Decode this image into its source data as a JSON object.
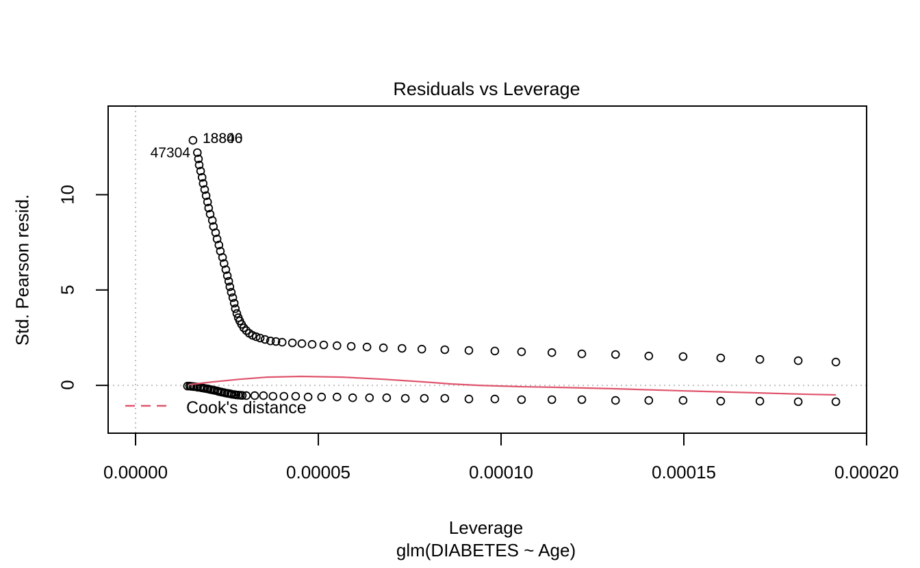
{
  "title": "Residuals vs Leverage",
  "axes": {
    "x_label": "Leverage",
    "x_sub_label": "glm(DIABETES ~ Age)",
    "y_label": "Std. Pearson resid."
  },
  "legend": {
    "label": "Cook's distance"
  },
  "colors": {
    "point": "#000000",
    "smooth_line": "#DF536B",
    "legend_dash": "#DF536B",
    "guide": "#BEBEBE",
    "frame": "#000000"
  },
  "chart_data": {
    "type": "scatter",
    "title": "Residuals vs Leverage",
    "xlabel": "Leverage",
    "xlabel_sub": "glm(DIABETES ~ Age)",
    "ylabel": "Std. Pearson resid.",
    "x_scale_note": "x values below are leverage in units of 1e-5",
    "x_scale": 1e-05,
    "xlim": [
      -0.75,
      20.0
    ],
    "ylim": [
      -2.51,
      14.65
    ],
    "grid": false,
    "legend_position": "bottom-left-inside",
    "x_ticks": [
      {
        "v": 0.0,
        "label": "0.00000"
      },
      {
        "v": 5.0,
        "label": "0.00005"
      },
      {
        "v": 10.0,
        "label": "0.00010"
      },
      {
        "v": 15.0,
        "label": "0.00015"
      },
      {
        "v": 20.0,
        "label": "0.00020"
      }
    ],
    "y_ticks": [
      {
        "v": 0,
        "label": "0"
      },
      {
        "v": 5,
        "label": "5"
      },
      {
        "v": 10,
        "label": "10"
      }
    ],
    "guides": {
      "vline_x": 0.0,
      "hline_y": 0.0
    },
    "series": [
      {
        "name": "positive-residual-branch",
        "marker": "open-circle",
        "points": [
          [
            1.57,
            12.85
          ],
          [
            1.69,
            12.21
          ],
          [
            1.72,
            11.88
          ],
          [
            1.74,
            11.56
          ],
          [
            1.78,
            11.24
          ],
          [
            1.82,
            10.91
          ],
          [
            1.85,
            10.59
          ],
          [
            1.89,
            10.27
          ],
          [
            1.93,
            9.95
          ],
          [
            1.97,
            9.62
          ],
          [
            2.0,
            9.3
          ],
          [
            2.04,
            8.98
          ],
          [
            2.1,
            8.65
          ],
          [
            2.13,
            8.33
          ],
          [
            2.19,
            8.01
          ],
          [
            2.23,
            7.68
          ],
          [
            2.28,
            7.36
          ],
          [
            2.32,
            7.04
          ],
          [
            2.38,
            6.71
          ],
          [
            2.42,
            6.39
          ],
          [
            2.47,
            6.07
          ],
          [
            2.51,
            5.75
          ],
          [
            2.55,
            5.46
          ],
          [
            2.58,
            5.17
          ],
          [
            2.62,
            4.88
          ],
          [
            2.66,
            4.6
          ],
          [
            2.7,
            4.31
          ],
          [
            2.73,
            4.02
          ],
          [
            2.77,
            3.77
          ],
          [
            2.81,
            3.55
          ],
          [
            2.85,
            3.38
          ],
          [
            2.9,
            3.2
          ],
          [
            2.96,
            3.02
          ],
          [
            3.03,
            2.87
          ],
          [
            3.11,
            2.73
          ],
          [
            3.2,
            2.62
          ],
          [
            3.3,
            2.55
          ],
          [
            3.41,
            2.48
          ],
          [
            3.54,
            2.41
          ],
          [
            3.69,
            2.33
          ],
          [
            3.84,
            2.3
          ],
          [
            4.01,
            2.26
          ],
          [
            4.29,
            2.23
          ],
          [
            4.55,
            2.19
          ],
          [
            4.83,
            2.15
          ],
          [
            5.15,
            2.12
          ],
          [
            5.51,
            2.08
          ],
          [
            5.9,
            2.05
          ],
          [
            6.33,
            2.01
          ],
          [
            6.78,
            1.97
          ],
          [
            7.29,
            1.94
          ],
          [
            7.83,
            1.9
          ],
          [
            8.46,
            1.87
          ],
          [
            9.12,
            1.83
          ],
          [
            9.83,
            1.8
          ],
          [
            10.56,
            1.76
          ],
          [
            11.39,
            1.72
          ],
          [
            12.21,
            1.65
          ],
          [
            13.13,
            1.62
          ],
          [
            14.04,
            1.54
          ],
          [
            14.98,
            1.51
          ],
          [
            16.01,
            1.44
          ],
          [
            17.08,
            1.36
          ],
          [
            18.13,
            1.29
          ],
          [
            19.16,
            1.22
          ]
        ]
      },
      {
        "name": "negative-residual-branch",
        "marker": "open-circle",
        "points": [
          [
            1.42,
            -0.04
          ],
          [
            1.48,
            -0.04
          ],
          [
            1.52,
            -0.05
          ],
          [
            1.57,
            -0.06
          ],
          [
            1.61,
            -0.07
          ],
          [
            1.67,
            -0.08
          ],
          [
            1.7,
            -0.1
          ],
          [
            1.76,
            -0.11
          ],
          [
            1.8,
            -0.13
          ],
          [
            1.85,
            -0.14
          ],
          [
            1.89,
            -0.16
          ],
          [
            1.95,
            -0.18
          ],
          [
            1.99,
            -0.19
          ],
          [
            2.04,
            -0.22
          ],
          [
            2.08,
            -0.23
          ],
          [
            2.13,
            -0.25
          ],
          [
            2.17,
            -0.27
          ],
          [
            2.23,
            -0.29
          ],
          [
            2.27,
            -0.32
          ],
          [
            2.32,
            -0.34
          ],
          [
            2.36,
            -0.36
          ],
          [
            2.42,
            -0.38
          ],
          [
            2.45,
            -0.4
          ],
          [
            2.51,
            -0.42
          ],
          [
            2.55,
            -0.43
          ],
          [
            2.6,
            -0.45
          ],
          [
            2.64,
            -0.47
          ],
          [
            2.7,
            -0.48
          ],
          [
            2.75,
            -0.5
          ],
          [
            2.81,
            -0.51
          ],
          [
            2.87,
            -0.52
          ],
          [
            2.92,
            -0.53
          ],
          [
            3.03,
            -0.54
          ],
          [
            3.26,
            -0.54
          ],
          [
            3.5,
            -0.54
          ],
          [
            3.76,
            -0.57
          ],
          [
            4.06,
            -0.57
          ],
          [
            4.38,
            -0.57
          ],
          [
            4.72,
            -0.61
          ],
          [
            5.09,
            -0.61
          ],
          [
            5.51,
            -0.61
          ],
          [
            5.94,
            -0.65
          ],
          [
            6.4,
            -0.65
          ],
          [
            6.87,
            -0.65
          ],
          [
            7.38,
            -0.68
          ],
          [
            7.9,
            -0.68
          ],
          [
            8.46,
            -0.68
          ],
          [
            9.12,
            -0.72
          ],
          [
            9.83,
            -0.72
          ],
          [
            10.56,
            -0.75
          ],
          [
            11.39,
            -0.75
          ],
          [
            12.21,
            -0.75
          ],
          [
            13.13,
            -0.79
          ],
          [
            14.04,
            -0.79
          ],
          [
            14.98,
            -0.79
          ],
          [
            16.01,
            -0.83
          ],
          [
            17.08,
            -0.83
          ],
          [
            18.13,
            -0.86
          ],
          [
            19.16,
            -0.86
          ]
        ]
      },
      {
        "name": "smooth-curve",
        "marker": "line",
        "points": [
          [
            1.46,
            0.04
          ],
          [
            2.1,
            0.18
          ],
          [
            2.85,
            0.32
          ],
          [
            3.6,
            0.43
          ],
          [
            4.53,
            0.47
          ],
          [
            5.66,
            0.43
          ],
          [
            6.78,
            0.32
          ],
          [
            7.9,
            0.18
          ],
          [
            8.65,
            0.07
          ],
          [
            9.4,
            0.0
          ],
          [
            10.52,
            -0.07
          ],
          [
            11.65,
            -0.11
          ],
          [
            13.15,
            -0.18
          ],
          [
            15.02,
            -0.29
          ],
          [
            16.89,
            -0.39
          ],
          [
            18.39,
            -0.47
          ],
          [
            19.16,
            -0.5
          ]
        ]
      }
    ],
    "point_labels": [
      {
        "text": "18846",
        "x": 1.57,
        "v": 12.85,
        "side": "right"
      },
      {
        "text": "18800",
        "x": 1.57,
        "v": 12.85,
        "side": "right"
      },
      {
        "text": "47304",
        "x": 1.69,
        "v": 12.21,
        "side": "left"
      }
    ]
  }
}
